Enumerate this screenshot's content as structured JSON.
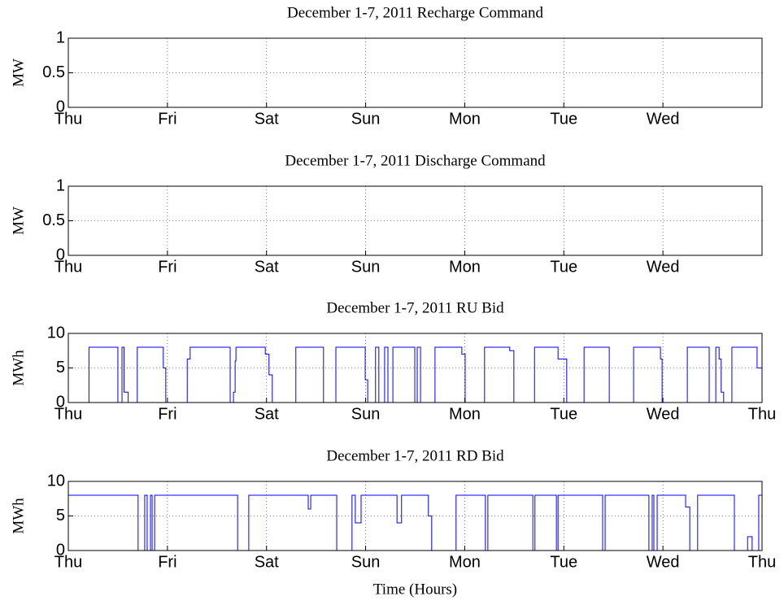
{
  "chart_data": [
    {
      "type": "line",
      "title": "December 1-7, 2011 Recharge Command",
      "ylabel": "MW",
      "color": "#0000ff",
      "x": [
        0,
        168
      ],
      "values": [
        0,
        0
      ],
      "xlim": [
        0,
        168
      ],
      "xticks": [
        {
          "value": 0,
          "label": "Thu"
        },
        {
          "value": 24,
          "label": "Fri"
        },
        {
          "value": 48,
          "label": "Sat"
        },
        {
          "value": 72,
          "label": "Sun"
        },
        {
          "value": 96,
          "label": "Mon"
        },
        {
          "value": 120,
          "label": "Tue"
        },
        {
          "value": 144,
          "label": "Wed"
        }
      ],
      "ylim": [
        0,
        1
      ],
      "yticks": [
        0,
        0.5,
        1
      ],
      "grid": true
    },
    {
      "type": "line",
      "title": "December 1-7, 2011 Discharge Command",
      "ylabel": "MW",
      "color": "#0000ff",
      "x": [
        0,
        168
      ],
      "values": [
        0,
        0
      ],
      "xlim": [
        0,
        168
      ],
      "xticks": [
        {
          "value": 0,
          "label": "Thu"
        },
        {
          "value": 24,
          "label": "Fri"
        },
        {
          "value": 48,
          "label": "Sat"
        },
        {
          "value": 72,
          "label": "Sun"
        },
        {
          "value": 96,
          "label": "Mon"
        },
        {
          "value": 120,
          "label": "Tue"
        },
        {
          "value": 144,
          "label": "Wed"
        }
      ],
      "ylim": [
        0,
        1
      ],
      "yticks": [
        0,
        0.5,
        1
      ],
      "grid": true
    },
    {
      "type": "line",
      "title": "December 1-7, 2011 RU Bid",
      "ylabel": "MWh",
      "color": "#0000ff",
      "x": [
        0,
        5,
        5,
        12,
        12,
        13,
        13,
        13.5,
        13.5,
        14.5,
        14.5,
        16.7,
        16.7,
        23,
        23,
        23.6,
        23.6,
        28.8,
        28.8,
        29.5,
        29.5,
        39.2,
        39.2,
        40,
        40,
        40.4,
        40.4,
        40.6,
        40.6,
        47.7,
        47.7,
        48.6,
        48.6,
        49.4,
        49.4,
        55.1,
        55.1,
        61.8,
        61.8,
        64.8,
        64.8,
        71.9,
        71.9,
        72.5,
        72.5,
        74.4,
        74.4,
        75.2,
        75.2,
        76.6,
        76.6,
        77.4,
        77.4,
        78.6,
        78.6,
        83.9,
        83.9,
        84.5,
        84.5,
        85.3,
        85.3,
        88.8,
        88.8,
        95.3,
        95.3,
        96.1,
        96.1,
        100.8,
        100.8,
        106.9,
        106.9,
        107.9,
        107.9,
        112.9,
        112.9,
        118.6,
        118.6,
        120.7,
        120.7,
        124.9,
        124.9,
        131,
        131,
        136.9,
        136.9,
        143.4,
        143.4,
        143.8,
        143.8,
        149.9,
        149.9,
        155.2,
        155.2,
        156.8,
        156.8,
        157.6,
        157.6,
        158.1,
        158.1,
        158.7,
        158.7,
        160.7,
        160.7,
        166.8,
        166.8,
        168
      ],
      "values": [
        0,
        0,
        8,
        8,
        0,
        0,
        8,
        8,
        1.5,
        1.5,
        0,
        0,
        8,
        8,
        5,
        5,
        0,
        0,
        6.3,
        6.3,
        8,
        8,
        0,
        0,
        1.5,
        1.5,
        6,
        6,
        8,
        8,
        7,
        7,
        4,
        4,
        0,
        0,
        8,
        8,
        0,
        0,
        8,
        8,
        3.3,
        3.3,
        0,
        0,
        8,
        8,
        0,
        0,
        8,
        8,
        0,
        0,
        8,
        8,
        0,
        0,
        8,
        8,
        0,
        0,
        8,
        8,
        7,
        7,
        0,
        0,
        8,
        8,
        7.5,
        7.5,
        0,
        0,
        8,
        8,
        6.3,
        6.3,
        0,
        0,
        8,
        8,
        0,
        0,
        8,
        8,
        6.3,
        6.3,
        0,
        0,
        8,
        8,
        0,
        0,
        8,
        8,
        6.3,
        6.3,
        1.5,
        1.5,
        0,
        0,
        8,
        8,
        5,
        5
      ],
      "xlim": [
        0,
        168
      ],
      "xticks": [
        {
          "value": 0,
          "label": "Thu"
        },
        {
          "value": 24,
          "label": "Fri"
        },
        {
          "value": 48,
          "label": "Sat"
        },
        {
          "value": 72,
          "label": "Sun"
        },
        {
          "value": 96,
          "label": "Mon"
        },
        {
          "value": 120,
          "label": "Tue"
        },
        {
          "value": 144,
          "label": "Wed"
        },
        {
          "value": 168,
          "label": "Thu"
        }
      ],
      "ylim": [
        0,
        10
      ],
      "yticks": [
        0,
        5,
        10
      ],
      "grid": true
    },
    {
      "type": "line",
      "title": "December 1-7, 2011 RD Bid",
      "ylabel": "MWh",
      "xlabel": "Time (Hours)",
      "color": "#0000ff",
      "x": [
        0,
        16.9,
        16.9,
        18.5,
        18.5,
        19.1,
        19.1,
        19.9,
        19.9,
        20.3,
        20.3,
        20.9,
        20.9,
        41,
        41,
        43.7,
        43.7,
        58.1,
        58.1,
        58.7,
        58.7,
        65,
        65,
        68.7,
        68.7,
        69.5,
        69.5,
        70.9,
        70.9,
        79.6,
        79.6,
        80.7,
        80.7,
        87.2,
        87.2,
        88,
        88,
        93.9,
        93.9,
        101,
        101,
        101.6,
        101.6,
        112.5,
        112.5,
        113,
        113,
        118.2,
        118.2,
        118.6,
        118.6,
        129.4,
        129.4,
        130,
        130,
        140.6,
        140.6,
        141.4,
        141.4,
        141.8,
        141.8,
        142.6,
        142.6,
        149.5,
        149.5,
        150.5,
        150.5,
        152.4,
        152.4,
        161.3,
        161.3,
        164.5,
        164.5,
        165.6,
        165.6,
        167.2,
        167.2,
        168
      ],
      "values": [
        8,
        8,
        0,
        0,
        8,
        8,
        0,
        0,
        8,
        8,
        0,
        0,
        8,
        8,
        0,
        0,
        8,
        8,
        6,
        6,
        8,
        8,
        0,
        0,
        8,
        8,
        4,
        4,
        8,
        8,
        4,
        4,
        8,
        8,
        5,
        5,
        0,
        0,
        8,
        8,
        0,
        0,
        8,
        8,
        0,
        0,
        8,
        8,
        0,
        0,
        8,
        8,
        0,
        0,
        8,
        8,
        0,
        0,
        8,
        8,
        0,
        0,
        8,
        8,
        6.3,
        6.3,
        0,
        0,
        8,
        8,
        0,
        0,
        2,
        2,
        0,
        0,
        8,
        8
      ],
      "xlim": [
        0,
        168
      ],
      "xticks": [
        {
          "value": 0,
          "label": "Thu"
        },
        {
          "value": 24,
          "label": "Fri"
        },
        {
          "value": 48,
          "label": "Sat"
        },
        {
          "value": 72,
          "label": "Sun"
        },
        {
          "value": 96,
          "label": "Mon"
        },
        {
          "value": 120,
          "label": "Tue"
        },
        {
          "value": 144,
          "label": "Wed"
        },
        {
          "value": 168,
          "label": "Thu"
        }
      ],
      "ylim": [
        0,
        10
      ],
      "yticks": [
        0,
        5,
        10
      ],
      "grid": true
    }
  ]
}
